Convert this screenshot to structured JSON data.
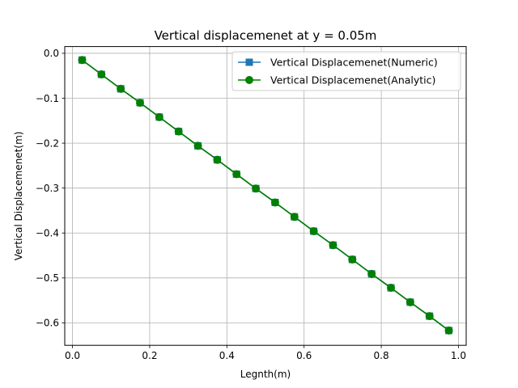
{
  "chart_data": {
    "type": "line",
    "title": "Vertical displacemenet at y = 0.05m",
    "xlabel": "Legnth(m)",
    "ylabel": "Vertical Displacemenet(m)",
    "xlim": [
      -0.02,
      1.02
    ],
    "ylim": [
      -0.65,
      0.015
    ],
    "xticks": [
      0.0,
      0.2,
      0.4,
      0.6,
      0.8,
      1.0
    ],
    "xtick_labels": [
      "0.0",
      "0.2",
      "0.4",
      "0.6",
      "0.8",
      "1.0"
    ],
    "yticks": [
      0.0,
      -0.1,
      -0.2,
      -0.3,
      -0.4,
      -0.5,
      -0.6
    ],
    "ytick_labels": [
      "0.0",
      "−0.1",
      "−0.2",
      "−0.3",
      "−0.4",
      "−0.5",
      "−0.6"
    ],
    "grid": true,
    "legend_position": "top-right",
    "x": [
      0.025,
      0.075,
      0.125,
      0.175,
      0.225,
      0.275,
      0.325,
      0.375,
      0.425,
      0.475,
      0.525,
      0.575,
      0.625,
      0.675,
      0.725,
      0.775,
      0.825,
      0.875,
      0.925,
      0.975
    ],
    "series": [
      {
        "name": "Vertical Displacemenet(Numeric)",
        "color": "#1f77b4",
        "marker": "square",
        "values": [
          -0.015,
          -0.047,
          -0.079,
          -0.11,
          -0.142,
          -0.174,
          -0.206,
          -0.237,
          -0.269,
          -0.301,
          -0.332,
          -0.364,
          -0.396,
          -0.427,
          -0.459,
          -0.491,
          -0.522,
          -0.554,
          -0.585,
          -0.617
        ]
      },
      {
        "name": "Vertical Displacemenet(Analytic)",
        "color": "#008000",
        "marker": "circle",
        "values": [
          -0.015,
          -0.047,
          -0.079,
          -0.11,
          -0.142,
          -0.174,
          -0.206,
          -0.237,
          -0.269,
          -0.301,
          -0.332,
          -0.364,
          -0.396,
          -0.427,
          -0.459,
          -0.491,
          -0.522,
          -0.554,
          -0.585,
          -0.617
        ]
      }
    ]
  }
}
